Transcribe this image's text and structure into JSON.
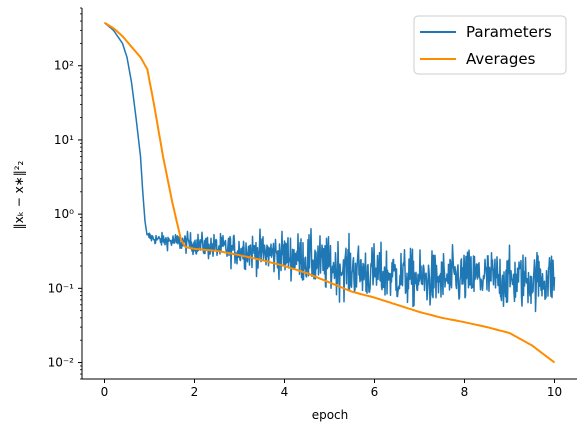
{
  "chart_data": {
    "type": "line",
    "title": "",
    "xlabel": "epoch",
    "ylabel": "‖xₖ − x∗‖²₂",
    "xlim": [
      -0.5,
      10.5
    ],
    "ylim": [
      0.006,
      600
    ],
    "yscale": "log",
    "grid": false,
    "legend_position": "top-right",
    "x_ticks": [
      0,
      2,
      4,
      6,
      8,
      10
    ],
    "x_tick_labels": [
      "0",
      "2",
      "4",
      "6",
      "8",
      "10"
    ],
    "y_ticks": [
      0.01,
      0.1,
      1,
      10,
      100
    ],
    "y_tick_labels": [
      "10⁻²",
      "10⁻¹",
      "10⁰",
      "10¹",
      "10²"
    ],
    "series": [
      {
        "name": "Parameters",
        "color": "#1f77b4",
        "noisy": true,
        "x": [
          0,
          0.2,
          0.4,
          0.5,
          0.6,
          0.7,
          0.8,
          0.85,
          0.9,
          0.95,
          1.0,
          1.05,
          1.2,
          1.5,
          2.0,
          2.5,
          3.0,
          3.5,
          4.0,
          4.5,
          5.0,
          5.5,
          6.0,
          6.5,
          7.0,
          7.5,
          8.0,
          8.5,
          9.0,
          9.5,
          10.0
        ],
        "values": [
          380,
          300,
          200,
          130,
          60,
          20,
          6,
          2,
          0.8,
          0.5,
          0.5,
          0.48,
          0.45,
          0.43,
          0.4,
          0.35,
          0.33,
          0.3,
          0.28,
          0.25,
          0.2,
          0.18,
          0.16,
          0.15,
          0.13,
          0.13,
          0.14,
          0.14,
          0.13,
          0.13,
          0.14
        ]
      },
      {
        "name": "Averages",
        "color": "#ff8c00",
        "noisy": false,
        "x": [
          0,
          0.2,
          0.4,
          0.6,
          0.8,
          0.95,
          1.1,
          1.3,
          1.5,
          1.7,
          1.8,
          2.0,
          2.5,
          3.0,
          3.5,
          4.0,
          4.5,
          5.0,
          5.5,
          6.0,
          6.5,
          7.0,
          7.5,
          8.0,
          8.5,
          9.0,
          9.5,
          10.0
        ],
        "values": [
          380,
          320,
          250,
          180,
          130,
          90,
          30,
          6,
          1.5,
          0.45,
          0.36,
          0.34,
          0.32,
          0.28,
          0.24,
          0.2,
          0.16,
          0.12,
          0.09,
          0.075,
          0.06,
          0.048,
          0.04,
          0.035,
          0.03,
          0.025,
          0.017,
          0.01
        ]
      }
    ]
  }
}
